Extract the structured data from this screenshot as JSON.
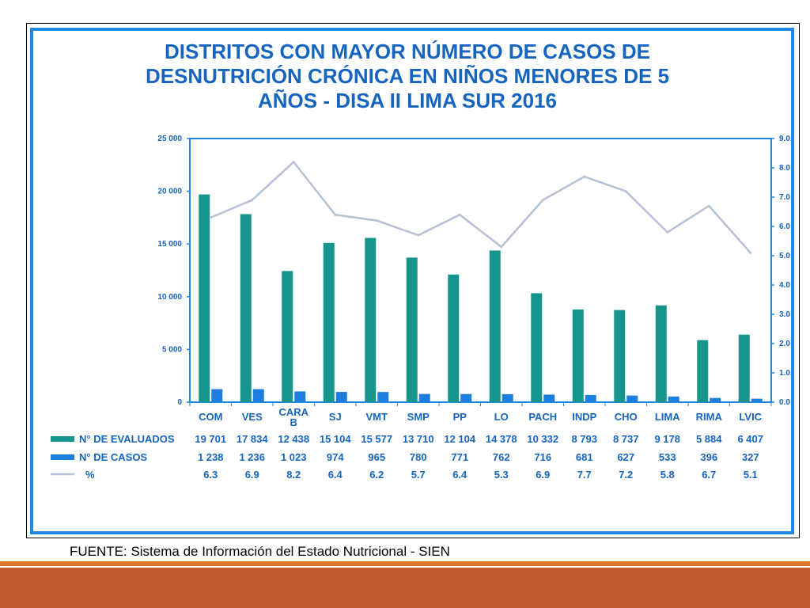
{
  "slide": {
    "source_note": "FUENTE: Sistema de Información del Estado Nutricional - SIEN"
  },
  "chart_data": {
    "type": "bar",
    "title": "DISTRITOS CON MAYOR NÚMERO DE CASOS DE DESNUTRICIÓN CRÓNICA EN NIÑOS MENORES DE 5 AÑOS - DISA II LIMA SUR 2016",
    "title_lines": [
      "DISTRITOS CON MAYOR NÚMERO DE CASOS DE",
      "DESNUTRICIÓN CRÓNICA EN NIÑOS MENORES DE 5",
      "AÑOS - DISA II LIMA SUR 2016"
    ],
    "categories": [
      "COM",
      "VES",
      "CARA B",
      "SJ",
      "VMT",
      "SMP",
      "PP",
      "LO",
      "PACH",
      "INDP",
      "CHO",
      "LIMA",
      "RIMA",
      "LVIC"
    ],
    "category_lines": [
      [
        "COM"
      ],
      [
        "VES"
      ],
      [
        "CARA",
        "B"
      ],
      [
        "SJ"
      ],
      [
        "VMT"
      ],
      [
        "SMP"
      ],
      [
        "PP"
      ],
      [
        "LO"
      ],
      [
        "PACH"
      ],
      [
        "INDP"
      ],
      [
        "CHO"
      ],
      [
        "LIMA"
      ],
      [
        "RIMA"
      ],
      [
        "LVIC"
      ]
    ],
    "series": [
      {
        "name": "N° DE  EVALUADOS",
        "kind": "bar",
        "axis": "left",
        "color": "#16958c",
        "values": [
          19701,
          17834,
          12438,
          15104,
          15577,
          13710,
          12104,
          14378,
          10332,
          8793,
          8737,
          9178,
          5884,
          6407
        ],
        "labels": [
          "19 701",
          "17 834",
          "12 438",
          "15 104",
          "15 577",
          "13 710",
          "12 104",
          "14 378",
          "10 332",
          "8 793",
          "8 737",
          "9 178",
          "5 884",
          "6 407"
        ]
      },
      {
        "name": "N° DE CASOS",
        "kind": "bar",
        "axis": "left",
        "color": "#1e7ee0",
        "values": [
          1238,
          1236,
          1023,
          974,
          965,
          780,
          771,
          762,
          716,
          681,
          627,
          533,
          396,
          327
        ],
        "labels": [
          "1 238",
          "1 236",
          "1 023",
          "974",
          "965",
          "780",
          "771",
          "762",
          "716",
          "681",
          "627",
          "533",
          "396",
          "327"
        ]
      },
      {
        "name": "%",
        "kind": "line",
        "axis": "right",
        "color": "#b6c1d6",
        "values": [
          6.3,
          6.9,
          8.2,
          6.4,
          6.2,
          5.7,
          6.4,
          5.3,
          6.9,
          7.7,
          7.2,
          5.8,
          6.7,
          5.1
        ],
        "labels": [
          "6.3",
          "6.9",
          "8.2",
          "6.4",
          "6.2",
          "5.7",
          "6.4",
          "5.3",
          "6.9",
          "7.7",
          "7.2",
          "5.8",
          "6.7",
          "5.1"
        ]
      }
    ],
    "y_left": {
      "ylim": [
        0,
        25000
      ],
      "ticks": [
        0,
        5000,
        10000,
        15000,
        20000,
        25000
      ],
      "tick_labels": [
        "0",
        "5 000",
        "10 000",
        "15 000",
        "20 000",
        "25 000"
      ]
    },
    "y_right": {
      "ylim": [
        0,
        9
      ],
      "ticks": [
        0,
        1,
        2,
        3,
        4,
        5,
        6,
        7,
        8,
        9
      ],
      "tick_labels": [
        "0.0",
        "1.0",
        "2.0",
        "3.0",
        "4.0",
        "5.0",
        "6.0",
        "7.0",
        "8.0",
        "9.0"
      ]
    },
    "axis_color": "#1e88e5",
    "grid": false,
    "legend": "data-table-below"
  }
}
